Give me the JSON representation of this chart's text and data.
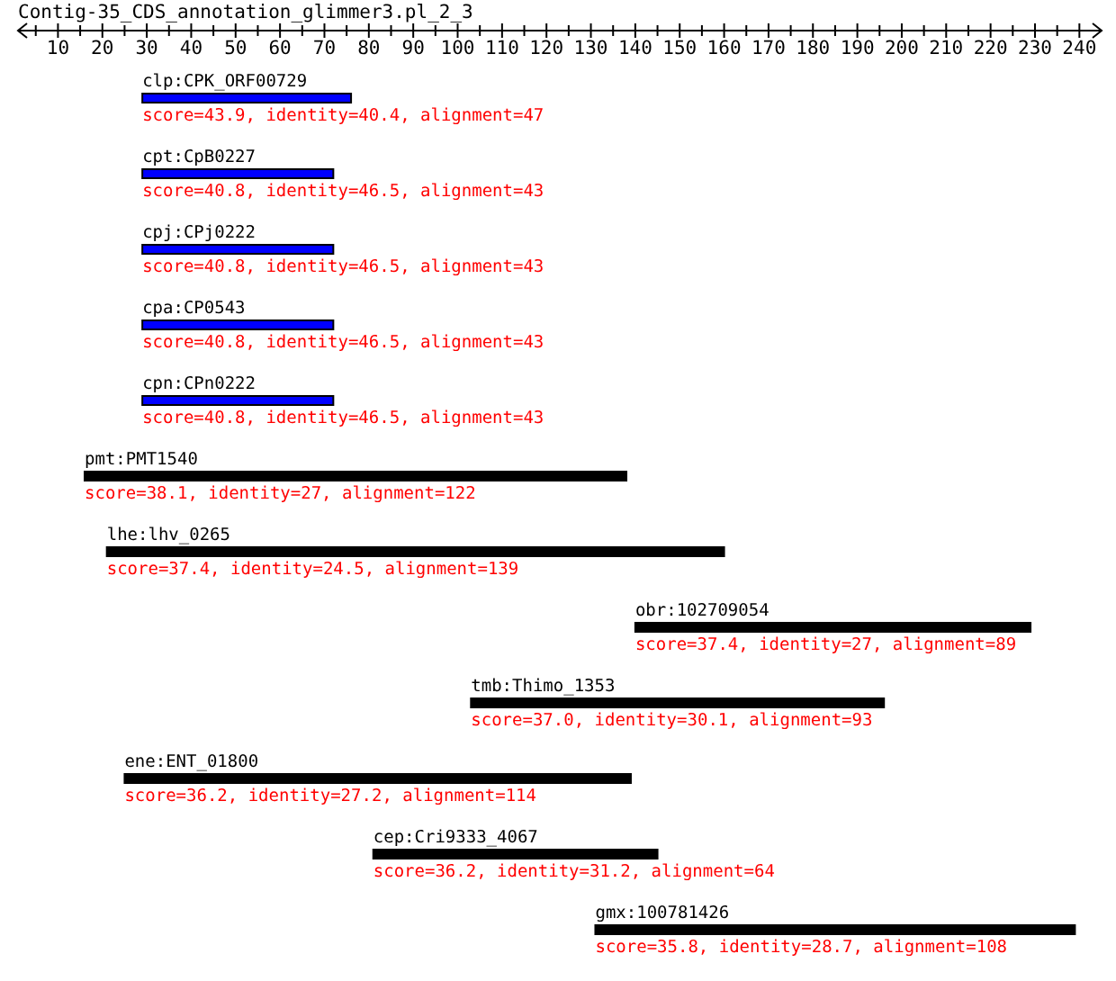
{
  "chart_data": {
    "type": "bar",
    "orientation": "horizontal",
    "title": "Contig-35_CDS_annotation_glimmer3.pl_2_3",
    "categories": [
      "clp:CPK_ORF00729",
      "cpt:CpB0227",
      "cpj:CPj0222",
      "cpa:CP0543",
      "cpn:CPn0222",
      "pmt:PMT1540",
      "lhe:lhv_0265",
      "obr:102709054",
      "tmb:Thimo_1353",
      "ene:ENT_01800",
      "cep:Cri9333_4067",
      "gmx:100781426"
    ],
    "base": [
      29,
      29,
      29,
      29,
      29,
      16,
      21,
      140,
      103,
      25,
      81,
      131
    ],
    "values": [
      47,
      43,
      43,
      43,
      43,
      122,
      139,
      89,
      93,
      114,
      64,
      108
    ],
    "colors": [
      "#0000ff",
      "#0000ff",
      "#0000ff",
      "#0000ff",
      "#0000ff",
      "#000000",
      "#000000",
      "#000000",
      "#000000",
      "#000000",
      "#000000",
      "#000000"
    ],
    "value_labels": [
      "score=43.9, identity=40.4, alignment=47",
      "score=40.8, identity=46.5, alignment=43",
      "score=40.8, identity=46.5, alignment=43",
      "score=40.8, identity=46.5, alignment=43",
      "score=40.8, identity=46.5, alignment=43",
      "score=38.1, identity=27, alignment=122",
      "score=37.4, identity=24.5, alignment=139",
      "score=37.4, identity=27, alignment=89",
      "score=37.0, identity=30.1, alignment=93",
      "score=36.2, identity=27.2, alignment=114",
      "score=36.2, identity=31.2, alignment=64",
      "score=35.8, identity=28.7, alignment=108"
    ],
    "xlim": [
      1,
      245
    ],
    "xticks": [
      10,
      20,
      30,
      40,
      50,
      60,
      70,
      80,
      90,
      100,
      110,
      120,
      130,
      140,
      150,
      160,
      170,
      180,
      190,
      200,
      210,
      220,
      230,
      240,
      {
        "value": 5,
        "label": null
      },
      {
        "value": 15,
        "label": null
      },
      {
        "value": 25,
        "label": null
      },
      {
        "value": 35,
        "label": null
      },
      {
        "value": 45,
        "label": null
      },
      {
        "value": 55,
        "label": null
      },
      {
        "value": 65,
        "label": null
      },
      {
        "value": 75,
        "label": null
      },
      {
        "value": 85,
        "label": null
      },
      {
        "value": 95,
        "label": null
      },
      {
        "value": 105,
        "label": null
      },
      {
        "value": 115,
        "label": null
      },
      {
        "value": 125,
        "label": null
      },
      {
        "value": 135,
        "label": null
      },
      {
        "value": 145,
        "label": null
      },
      {
        "value": 155,
        "label": null
      },
      {
        "value": 165,
        "label": null
      },
      {
        "value": 175,
        "label": null
      },
      {
        "value": 185,
        "label": null
      },
      {
        "value": 195,
        "label": null
      },
      {
        "value": 205,
        "label": null
      },
      {
        "value": 215,
        "label": null
      },
      {
        "value": 225,
        "label": null
      },
      {
        "value": 235,
        "label": null
      }
    ]
  }
}
